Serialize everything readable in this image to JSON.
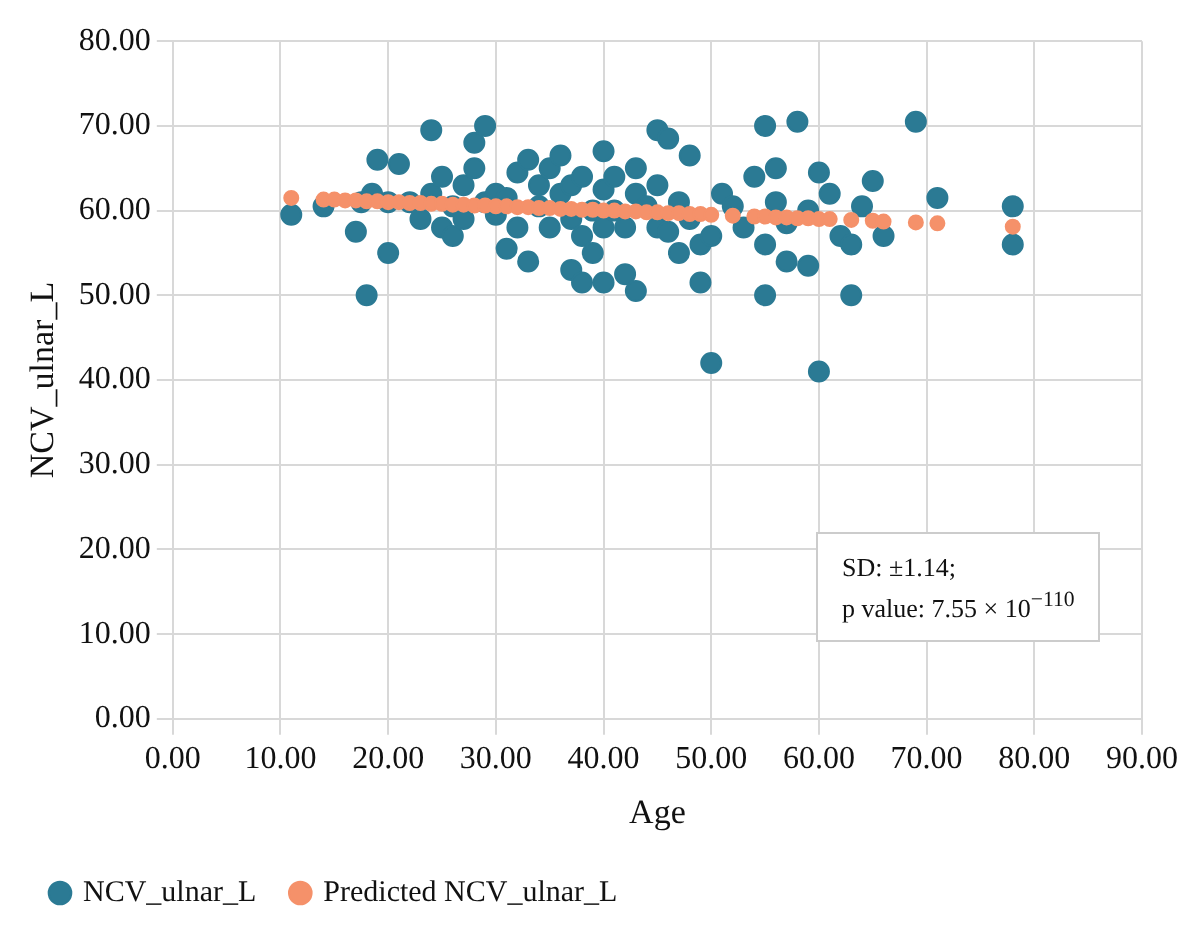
{
  "chart_data": {
    "type": "scatter",
    "xlabel": "Age",
    "ylabel": "NCV_ulnar_L",
    "xlim": [
      0,
      90
    ],
    "xticks": [
      {
        "value": 0,
        "label": "0.00"
      },
      {
        "value": 10,
        "label": "10.00"
      },
      {
        "value": 20,
        "label": "20.00"
      },
      {
        "value": 30,
        "label": "30.00"
      },
      {
        "value": 40,
        "label": "40.00"
      },
      {
        "value": 50,
        "label": "50.00"
      },
      {
        "value": 60,
        "label": "60.00"
      },
      {
        "value": 70,
        "label": "70.00"
      },
      {
        "value": 80,
        "label": "80.00"
      },
      {
        "value": 90,
        "label": "90.00"
      }
    ],
    "ylim": [
      0,
      80
    ],
    "yticks": [
      {
        "value": 0,
        "label": "0.00"
      },
      {
        "value": 10,
        "label": "10.00"
      },
      {
        "value": 20,
        "label": "20.00"
      },
      {
        "value": 30,
        "label": "30.00"
      },
      {
        "value": 40,
        "label": "40.00"
      },
      {
        "value": 50,
        "label": "50.00"
      },
      {
        "value": 60,
        "label": "60.00"
      },
      {
        "value": 70,
        "label": "70.00"
      },
      {
        "value": 80,
        "label": "80.00"
      }
    ],
    "grid": true,
    "legend": "bottom",
    "marker": "circle",
    "annotations": [
      "SD: ±1.14;",
      "p value: 7.55 × 10$^{−110}$"
    ],
    "series": [
      {
        "name": "NCV_ulnar_L",
        "color": "#2b7a94",
        "x": [
          11,
          14,
          17,
          17.5,
          18,
          18.5,
          19,
          20,
          20,
          21,
          22,
          23,
          24,
          24,
          25,
          25,
          26,
          26,
          27,
          27,
          28,
          28,
          29,
          29,
          30,
          30,
          31,
          31,
          32,
          32,
          33,
          33,
          34,
          34,
          35,
          35,
          36,
          36,
          37,
          37,
          37,
          38,
          38,
          38,
          39,
          39,
          40,
          40,
          40,
          40,
          41,
          41,
          42,
          42,
          43,
          43,
          43,
          44,
          45,
          45,
          45,
          46,
          46,
          47,
          47,
          48,
          48,
          49,
          49,
          50,
          50,
          51,
          52,
          53,
          54,
          55,
          55,
          55,
          56,
          56,
          57,
          57,
          58,
          59,
          59,
          60,
          60,
          61,
          62,
          63,
          63,
          64,
          65,
          66,
          69,
          71,
          78,
          78
        ],
        "values": [
          59.5,
          60.5,
          57.5,
          61,
          50,
          62,
          66,
          55,
          61,
          65.5,
          61,
          59,
          69.5,
          62,
          64,
          58,
          60.5,
          57,
          63,
          59,
          68,
          65,
          70,
          61,
          62,
          59.5,
          55.5,
          61.5,
          58,
          64.5,
          66,
          54,
          63,
          60.5,
          65,
          58,
          66.5,
          62,
          63,
          59,
          53,
          64,
          57,
          51.5,
          60,
          55,
          62.5,
          67,
          58,
          51.5,
          64,
          60,
          52.5,
          58,
          65,
          62,
          50.5,
          60.5,
          69.5,
          63,
          58,
          68.5,
          57.5,
          61,
          55,
          66.5,
          59,
          56,
          51.5,
          57,
          42,
          62,
          60.5,
          58,
          64,
          50,
          70,
          56,
          65,
          61,
          54,
          58.5,
          70.5,
          60,
          53.5,
          64.5,
          41,
          62,
          57,
          50,
          56,
          60.5,
          63.5,
          57,
          70.5,
          61.5,
          60.5,
          56
        ]
      },
      {
        "name": "Predicted NCV_ulnar_L",
        "color": "#f5916a",
        "x": [
          11,
          14,
          15,
          16,
          17,
          18,
          19,
          20,
          21,
          22,
          23,
          24,
          25,
          26,
          27,
          28,
          29,
          30,
          31,
          32,
          33,
          34,
          35,
          36,
          37,
          38,
          39,
          40,
          41,
          42,
          43,
          44,
          45,
          46,
          47,
          48,
          49,
          50,
          52,
          54,
          55,
          56,
          57,
          58,
          59,
          60,
          61,
          63,
          65,
          66,
          69,
          71,
          78
        ],
        "values": [
          61.5,
          61.3,
          61.3,
          61.2,
          61.2,
          61.1,
          61.1,
          61,
          61,
          60.9,
          60.9,
          60.8,
          60.8,
          60.7,
          60.7,
          60.6,
          60.6,
          60.5,
          60.5,
          60.4,
          60.4,
          60.3,
          60.3,
          60.2,
          60.2,
          60.1,
          60.1,
          60,
          60,
          59.9,
          59.9,
          59.8,
          59.8,
          59.7,
          59.7,
          59.6,
          59.6,
          59.5,
          59.4,
          59.3,
          59.3,
          59.2,
          59.2,
          59.1,
          59.1,
          59,
          59,
          58.9,
          58.8,
          58.7,
          58.6,
          58.5,
          58.1
        ]
      }
    ]
  }
}
